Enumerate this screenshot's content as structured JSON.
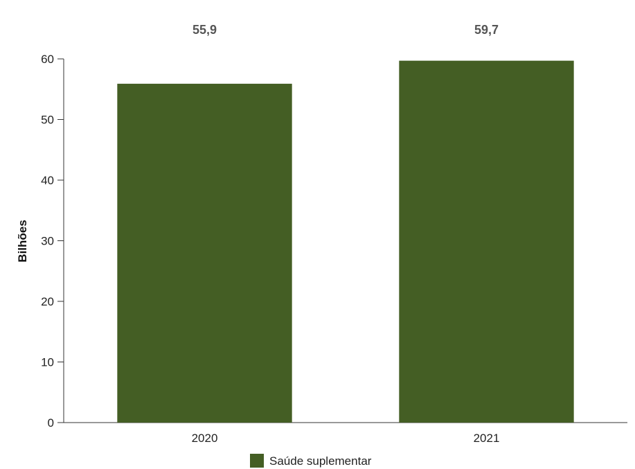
{
  "chart_data": {
    "type": "bar",
    "categories": [
      "2020",
      "2021"
    ],
    "series": [
      {
        "name": "Saúde suplementar",
        "values": [
          55.9,
          59.7
        ],
        "labels": [
          "55,9",
          "59,7"
        ]
      }
    ],
    "title": "",
    "xlabel": "",
    "ylabel": "Bilhões",
    "ylim": [
      0,
      60
    ],
    "yticks": [
      0,
      10,
      20,
      30,
      40,
      50,
      60
    ],
    "grid": false,
    "legend_position": "bottom",
    "colors": {
      "bar": "#445E24",
      "axis": "#333333"
    }
  }
}
